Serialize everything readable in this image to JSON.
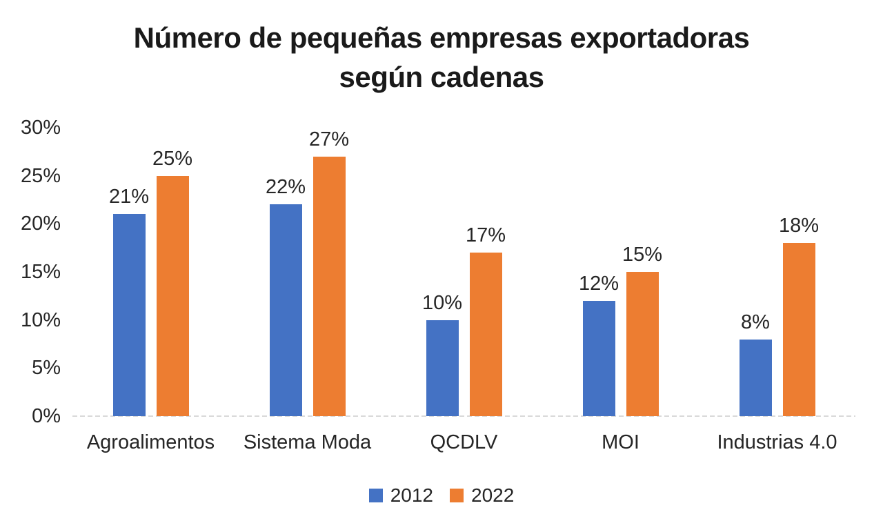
{
  "title_lines": [
    "Número de pequeñas empresas exportadoras",
    "según cadenas"
  ],
  "chart_data": {
    "type": "bar",
    "title": "Número de pequeñas empresas exportadoras según cadenas",
    "categories": [
      "Agroalimentos",
      "Sistema Moda",
      "QCDLV",
      "MOI",
      "Industrias 4.0"
    ],
    "series": [
      {
        "name": "2012",
        "color": "#4472C4",
        "values": [
          21,
          22,
          10,
          12,
          8
        ]
      },
      {
        "name": "2022",
        "color": "#ED7D31",
        "values": [
          25,
          27,
          17,
          15,
          18
        ]
      }
    ],
    "data_labels": {
      "2012": [
        "21%",
        "22%",
        "10%",
        "12%",
        "8%"
      ],
      "2022": [
        "25%",
        "27%",
        "17%",
        "15%",
        "18%"
      ]
    },
    "value_suffix": "%",
    "xlabel": "",
    "ylabel": "",
    "ylim": [
      0,
      30
    ],
    "ytick_step": 5,
    "ytick_labels": [
      "0%",
      "5%",
      "10%",
      "15%",
      "20%",
      "25%",
      "30%"
    ],
    "grid": false,
    "legend_position": "bottom",
    "legend_labels": [
      "2012",
      "2022"
    ],
    "axis_line_color": "#D9D9D9",
    "text_color": "#262626",
    "background_color": "#FFFFFF"
  }
}
